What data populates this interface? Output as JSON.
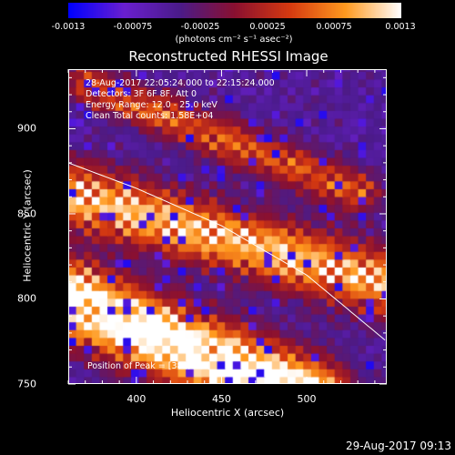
{
  "colorbar": {
    "ticks": [
      "-0.0013",
      "-0.00075",
      "-0.00025",
      "0.00025",
      "0.00075",
      "0.0013"
    ],
    "units": "(photons cm⁻² s⁻¹ asec⁻²)"
  },
  "info": {
    "line1": "28-Aug-2017 22:05:24.000 to 22:15:24.000",
    "line2": "Detectors: 3F 6F 8F, Att 0",
    "line3": "Energy Range: 12.0 - 25.0 keV",
    "line4": "Clean     Total counts: 1.58E+04"
  },
  "peak_label": "Position of Peak = [381,782]",
  "date_stamp": "29-Aug-2017 09:13",
  "chart_data": {
    "type": "heatmap",
    "title": "Reconstructed RHESSI Image",
    "xlabel": "Heliocentric X (arcsec)",
    "ylabel": "Heliocentric Y (arcsec)",
    "xlim": [
      360,
      547
    ],
    "ylim": [
      750,
      935
    ],
    "xticks": [
      400,
      450,
      500
    ],
    "yticks": [
      750,
      800,
      850,
      900
    ],
    "color_range": [
      -0.0013,
      0.0013
    ],
    "colormap": [
      "#0000ff",
      "#6a1fd0",
      "#4b1b8a",
      "#8a1030",
      "#d63a10",
      "#ff9a1f",
      "#ffffff"
    ],
    "limb_curve": {
      "x": [
        360,
        400,
        450,
        500,
        547
      ],
      "y": [
        880,
        865,
        843,
        814,
        775
      ]
    },
    "bright_bands": [
      {
        "x0": 360,
        "y0": 800,
        "x1": 470,
        "y1": 755,
        "width": 30,
        "intensity": 1.0
      },
      {
        "x0": 375,
        "y0": 858,
        "x1": 545,
        "y1": 810,
        "width": 26,
        "intensity": 0.7
      },
      {
        "x0": 400,
        "y0": 915,
        "x1": 500,
        "y1": 875,
        "width": 18,
        "intensity": 0.45
      }
    ],
    "peak": [
      381,
      782
    ]
  }
}
